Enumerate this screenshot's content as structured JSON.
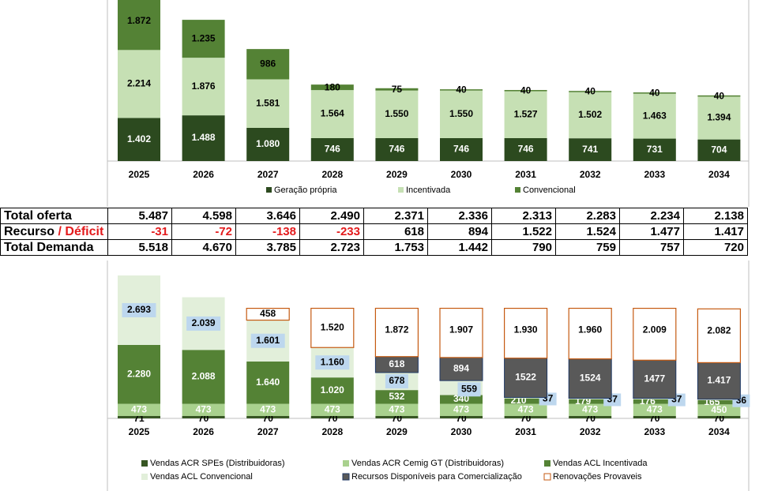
{
  "colors": {
    "geracao": "#2c4a1f",
    "incentivada": "#c6e0b4",
    "convencional": "#548235",
    "acr_spes": "#375623",
    "acr_cemig": "#a9d18e",
    "acl_incentivada": "#548235",
    "acl_convencional": "#e2efda",
    "recursos": "#595959",
    "renovacoes_border": "#c55a11",
    "label_box": "#bdd7ee",
    "negative": "#e31a1c"
  },
  "chart_data": [
    {
      "type": "bar",
      "stacked": true,
      "categories": [
        "2025",
        "2026",
        "2027",
        "2028",
        "2029",
        "2030",
        "2031",
        "2032",
        "2033",
        "2034"
      ],
      "series": [
        {
          "name": "Geração própria",
          "values": [
            1402,
            1488,
            1080,
            746,
            746,
            746,
            746,
            741,
            731,
            704
          ],
          "labels": [
            "1.402",
            "1.488",
            "1.080",
            "746",
            "746",
            "746",
            "746",
            "741",
            "731",
            "704"
          ]
        },
        {
          "name": "Incentivada",
          "values": [
            2214,
            1876,
            1581,
            1564,
            1550,
            1550,
            1527,
            1502,
            1463,
            1394
          ],
          "labels": [
            "2.214",
            "1.876",
            "1.581",
            "1.564",
            "1.550",
            "1.550",
            "1.527",
            "1.502",
            "1.463",
            "1.394"
          ]
        },
        {
          "name": "Convencional",
          "values": [
            1872,
            1235,
            986,
            180,
            75,
            40,
            40,
            40,
            40,
            40
          ],
          "labels": [
            "1.872",
            "1.235",
            "986",
            "180",
            "75",
            "40",
            "40",
            "40",
            "40",
            "40"
          ]
        }
      ],
      "legend": "bottom"
    },
    {
      "type": "table",
      "columns": [
        "2025",
        "2026",
        "2027",
        "2028",
        "2029",
        "2030",
        "2031",
        "2032",
        "2033",
        "2034"
      ],
      "rows": [
        {
          "label": "Total oferta",
          "values": [
            "5.487",
            "4.598",
            "3.646",
            "2.490",
            "2.371",
            "2.336",
            "2.313",
            "2.283",
            "2.234",
            "2.138"
          ]
        },
        {
          "label_parts": [
            "Recurso",
            "/",
            "Déficit"
          ],
          "values": [
            "-31",
            "-72",
            "-138",
            "-233",
            "618",
            "894",
            "1.522",
            "1.524",
            "1.477",
            "1.417"
          ]
        },
        {
          "label": "Total Demanda",
          "values": [
            "5.518",
            "4.670",
            "3.785",
            "2.723",
            "1.753",
            "1.442",
            "790",
            "759",
            "757",
            "720"
          ]
        }
      ]
    },
    {
      "type": "bar",
      "stacked": true,
      "categories": [
        "2025",
        "2026",
        "2027",
        "2028",
        "2029",
        "2030",
        "2031",
        "2032",
        "2033",
        "2034"
      ],
      "series": [
        {
          "name": "Vendas ACR SPEs (Distribuidoras)",
          "values": [
            71,
            70,
            70,
            70,
            70,
            70,
            70,
            70,
            70,
            70
          ],
          "labels": [
            "71",
            "70",
            "70",
            "70",
            "70",
            "70",
            "70",
            "70",
            "70",
            "70"
          ]
        },
        {
          "name": "Vendas ACR Cemig GT (Distribuidoras)",
          "values": [
            473,
            473,
            473,
            473,
            473,
            473,
            473,
            473,
            473,
            450
          ],
          "labels": [
            "473",
            "473",
            "473",
            "473",
            "473",
            "473",
            "473",
            "473",
            "473",
            "450"
          ]
        },
        {
          "name": "Vendas ACL Incentivada",
          "values": [
            2280,
            2088,
            1640,
            1020,
            532,
            340,
            210,
            179,
            176,
            165
          ],
          "labels": [
            "2.280",
            "2.088",
            "1.640",
            "1.020",
            "532",
            "340",
            "210",
            "179",
            "176",
            "165"
          ]
        },
        {
          "name": "Vendas ACL Convencional",
          "values": [
            2693,
            2039,
            1601,
            1160,
            678,
            559,
            37,
            37,
            37,
            36
          ],
          "labels": [
            "2.693",
            "2.039",
            "1.601",
            "1.160",
            "678",
            "559",
            "37",
            "37",
            "37",
            "36"
          ]
        },
        {
          "name": "Recursos Disponíveis para Comercialização",
          "values": [
            0,
            0,
            0,
            0,
            618,
            894,
            1522,
            1524,
            1477,
            1417
          ],
          "labels": [
            "",
            "",
            "",
            "",
            "618",
            "894",
            "1522",
            "1524",
            "1477",
            "1.417"
          ]
        },
        {
          "name": "Renovações Provaveis",
          "values": [
            0,
            0,
            458,
            1520,
            1872,
            1907,
            1930,
            1960,
            2009,
            2082
          ],
          "labels": [
            "",
            "",
            "458",
            "1.520",
            "1.872",
            "1.907",
            "1.930",
            "1.960",
            "2.009",
            "2.082"
          ]
        }
      ],
      "legend": "bottom"
    }
  ]
}
